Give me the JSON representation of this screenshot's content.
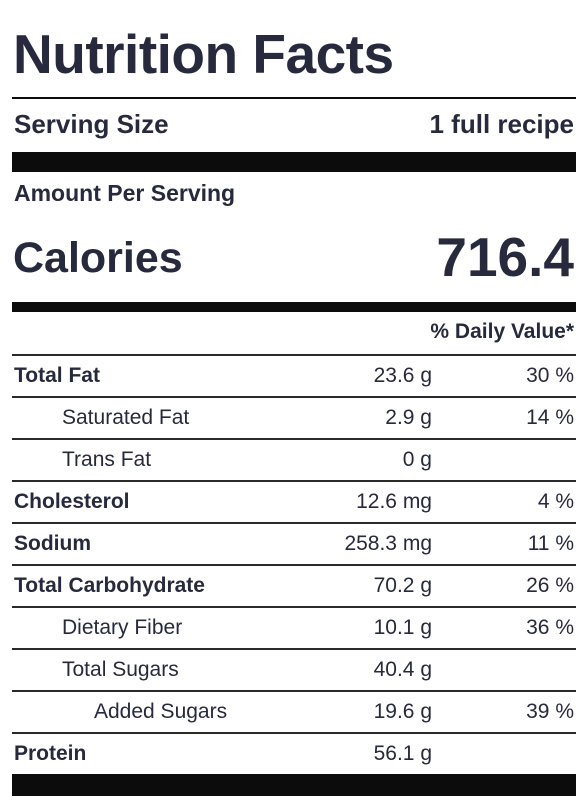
{
  "label": {
    "title": "Nutrition Facts",
    "serving_size_label": "Serving Size",
    "serving_size_value": "1 full recipe",
    "amount_per_serving": "Amount Per Serving",
    "calories_label": "Calories",
    "calories_value": "716.4",
    "daily_value_header": "% Daily Value*",
    "nutrients": [
      {
        "name": "Total Fat",
        "amount": "23.6 g",
        "dv": "30 %"
      },
      {
        "name": "Saturated Fat",
        "amount": "2.9 g",
        "dv": "14 %"
      },
      {
        "name": "Trans Fat",
        "amount": "0 g",
        "dv": ""
      },
      {
        "name": "Cholesterol",
        "amount": "12.6 mg",
        "dv": "4 %"
      },
      {
        "name": "Sodium",
        "amount": "258.3 mg",
        "dv": "11 %"
      },
      {
        "name": "Total Carbohydrate",
        "amount": "70.2 g",
        "dv": "26 %"
      },
      {
        "name": "Dietary Fiber",
        "amount": "10.1 g",
        "dv": "36 %"
      },
      {
        "name": "Total Sugars",
        "amount": "40.4 g",
        "dv": ""
      },
      {
        "name": "Added Sugars",
        "amount": "19.6 g",
        "dv": "39 %"
      },
      {
        "name": "Protein",
        "amount": "56.1 g",
        "dv": ""
      }
    ]
  },
  "colors": {
    "text": "#262a3c",
    "rule": "#0c0c0c"
  }
}
